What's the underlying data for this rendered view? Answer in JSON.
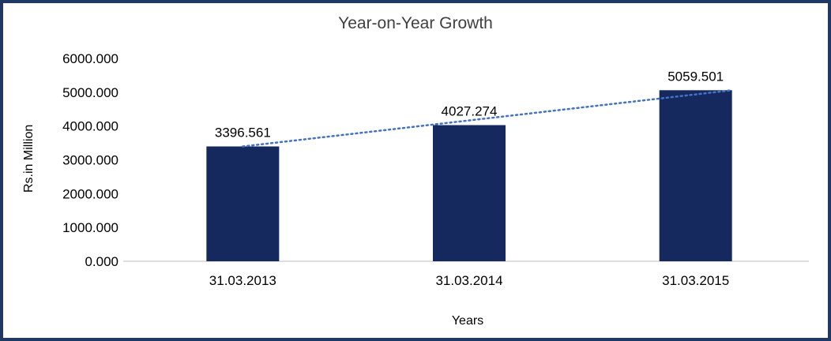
{
  "chart_data": {
    "type": "bar",
    "title": "Year-on-Year Growth",
    "xlabel": "Years",
    "ylabel": "Rs.in Million",
    "categories": [
      "31.03.2013",
      "31.03.2014",
      "31.03.2015"
    ],
    "values": [
      3396.561,
      4027.274,
      5059.501
    ],
    "data_labels": [
      "3396.561",
      "4027.274",
      "5059.501"
    ],
    "ylim": [
      0,
      6000
    ],
    "ytick_values": [
      0,
      1000,
      2000,
      3000,
      4000,
      5000,
      6000
    ],
    "ytick_labels": [
      "0.000",
      "1000.000",
      "2000.000",
      "3000.000",
      "4000.000",
      "5000.000",
      "6000.000"
    ],
    "grid": false,
    "legend": false,
    "trendline": {
      "style": "dotted",
      "color": "#4472c4",
      "from_category": "31.03.2013",
      "to_category": "31.03.2015"
    },
    "colors": {
      "bar": "#16295e",
      "axis_line": "#bfbfbf",
      "text": "#000000",
      "title_text": "#404040",
      "frame_border": "#1f3864"
    }
  }
}
